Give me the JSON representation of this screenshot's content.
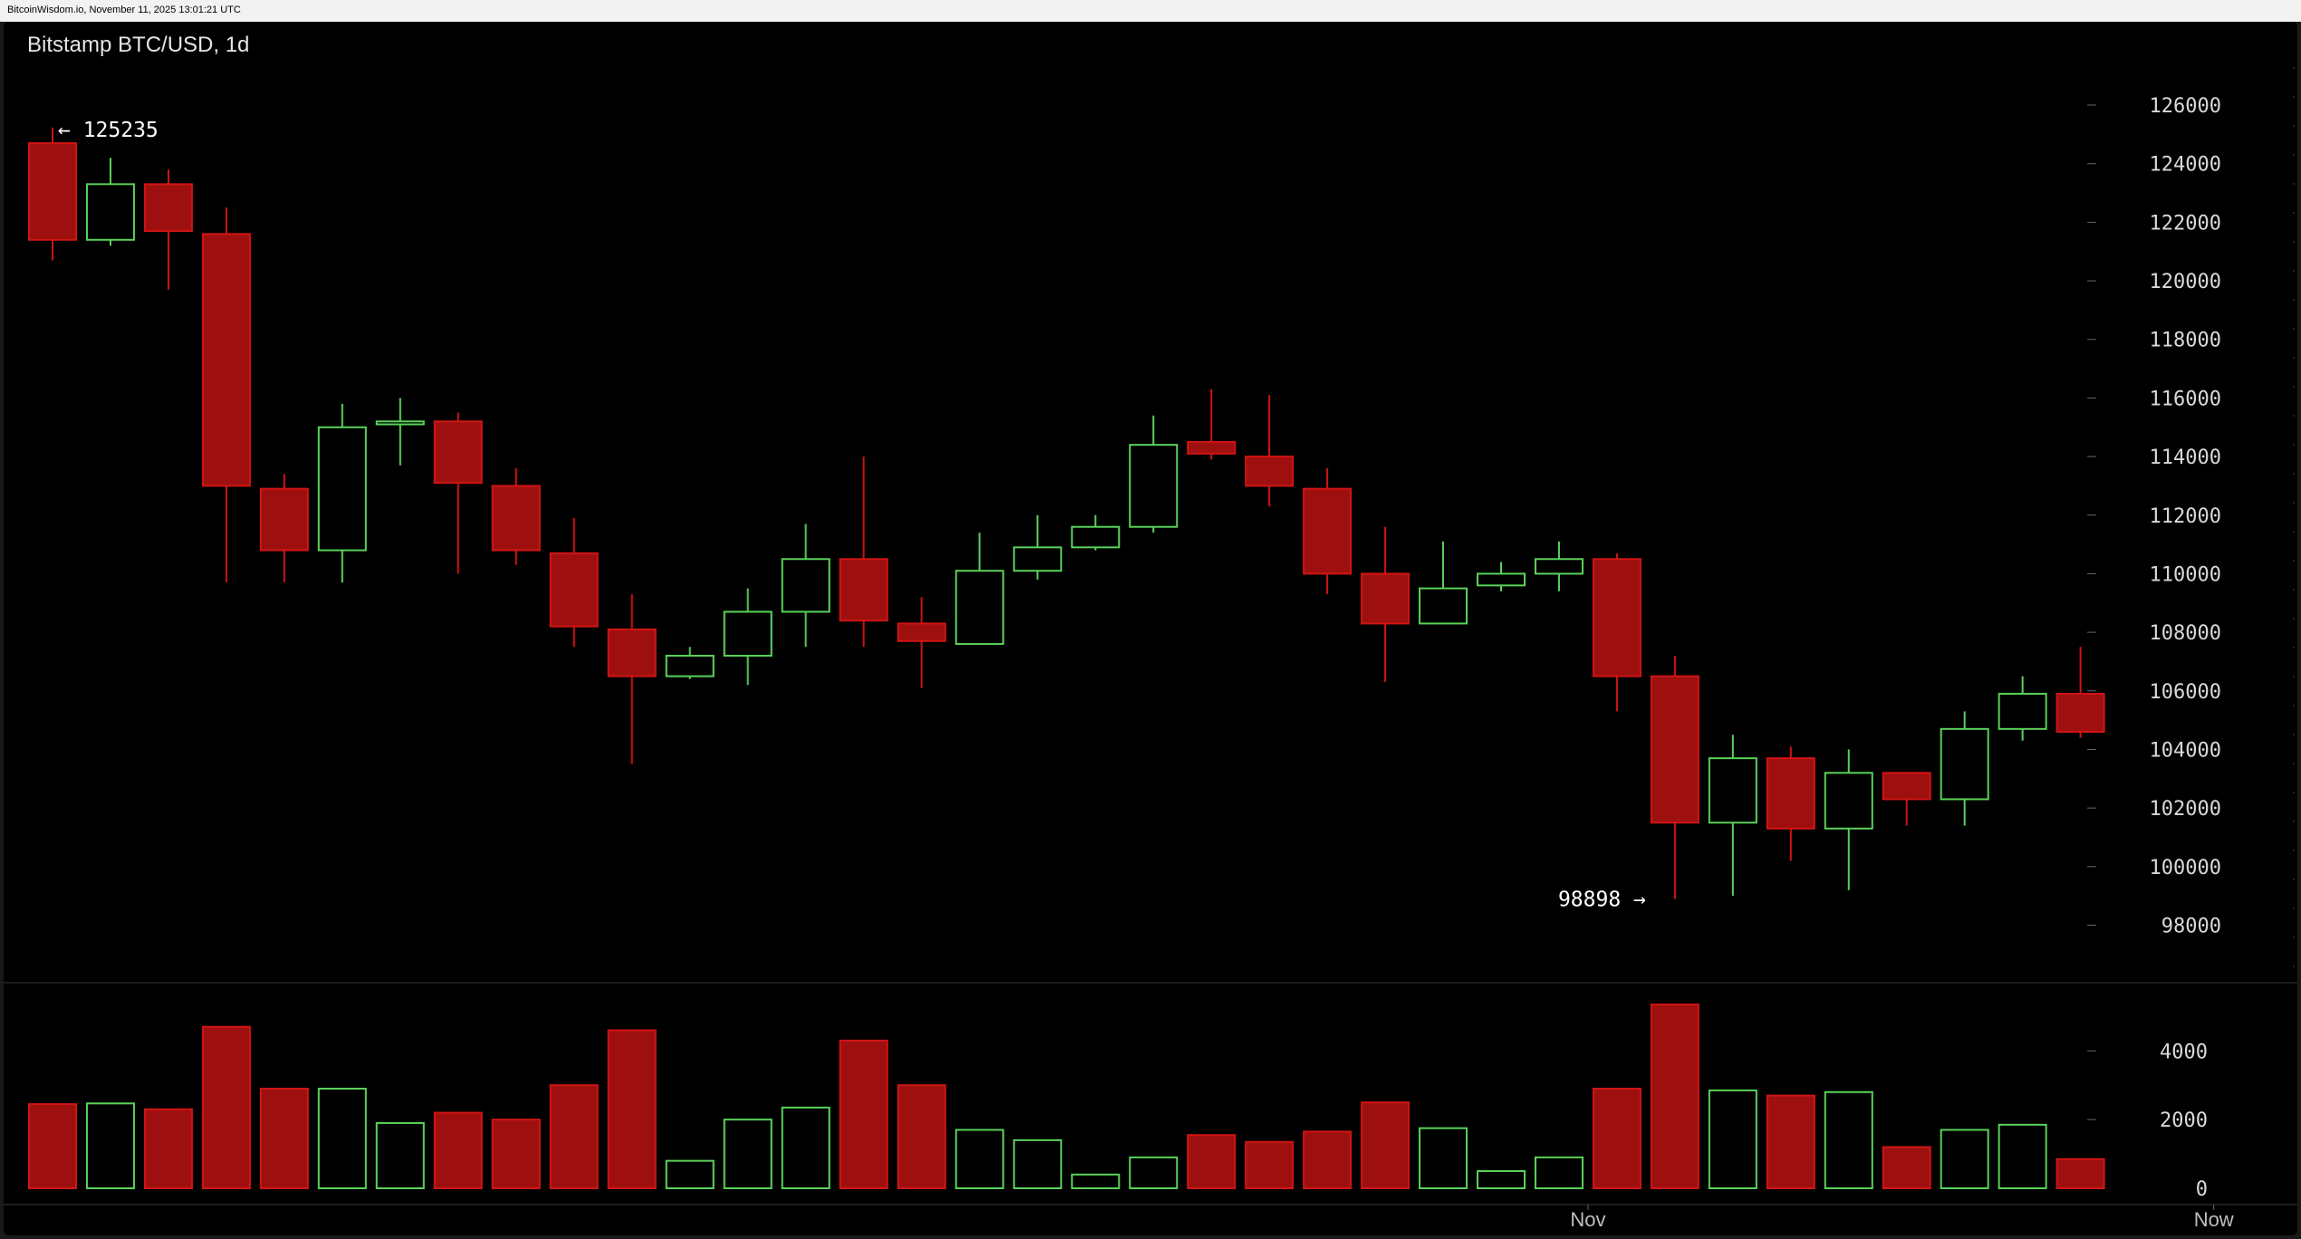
{
  "topbar": {
    "text": "BitcoinWisdom.io, November 11, 2025 13:01:21 UTC"
  },
  "chart_data": {
    "type": "candlestick",
    "title": "Bitstamp BTC/USD, 1d",
    "colors": {
      "up": "#5ad25a",
      "down": "#d11414",
      "down_fill": "#9e1010",
      "background": "#000000"
    },
    "price_axis": {
      "ylim": [
        96500,
        127300
      ],
      "ticks": [
        98000,
        100000,
        102000,
        104000,
        106000,
        108000,
        110000,
        112000,
        114000,
        116000,
        118000,
        120000,
        122000,
        124000,
        126000
      ]
    },
    "volume_axis": {
      "ylim": [
        0,
        5800
      ],
      "ticks": [
        0,
        2000,
        4000
      ]
    },
    "x_labels": [
      {
        "index": 26.5,
        "label": "Nov"
      },
      {
        "index": 37.3,
        "label": "Now"
      }
    ],
    "annotations": {
      "high": {
        "index": 0,
        "value": 125235,
        "label": "← 125235"
      },
      "low": {
        "index": 28,
        "value": 98898,
        "label": "98898 →"
      }
    },
    "candles": [
      {
        "o": 124700,
        "h": 125235,
        "l": 120700,
        "c": 121400,
        "v": 2450
      },
      {
        "o": 121400,
        "h": 124200,
        "l": 121200,
        "c": 123300,
        "v": 2470
      },
      {
        "o": 123300,
        "h": 123800,
        "l": 119700,
        "c": 121700,
        "v": 2300
      },
      {
        "o": 121600,
        "h": 122500,
        "l": 109700,
        "c": 113000,
        "v": 4700
      },
      {
        "o": 112900,
        "h": 113400,
        "l": 109700,
        "c": 110800,
        "v": 2900
      },
      {
        "o": 110800,
        "h": 115800,
        "l": 109700,
        "c": 115000,
        "v": 2900
      },
      {
        "o": 115100,
        "h": 116000,
        "l": 113700,
        "c": 115200,
        "v": 1900
      },
      {
        "o": 115200,
        "h": 115500,
        "l": 110000,
        "c": 113100,
        "v": 2200
      },
      {
        "o": 113000,
        "h": 113600,
        "l": 110300,
        "c": 110800,
        "v": 2000
      },
      {
        "o": 110700,
        "h": 111900,
        "l": 107500,
        "c": 108200,
        "v": 3000
      },
      {
        "o": 108100,
        "h": 109300,
        "l": 103500,
        "c": 106500,
        "v": 4600
      },
      {
        "o": 106500,
        "h": 107500,
        "l": 106400,
        "c": 107200,
        "v": 800
      },
      {
        "o": 107200,
        "h": 109500,
        "l": 106200,
        "c": 108700,
        "v": 2000
      },
      {
        "o": 108700,
        "h": 111700,
        "l": 107500,
        "c": 110500,
        "v": 2350
      },
      {
        "o": 110500,
        "h": 114000,
        "l": 107500,
        "c": 108400,
        "v": 4300
      },
      {
        "o": 108300,
        "h": 109200,
        "l": 106100,
        "c": 107700,
        "v": 3000
      },
      {
        "o": 107600,
        "h": 111400,
        "l": 107600,
        "c": 110100,
        "v": 1700
      },
      {
        "o": 110100,
        "h": 112000,
        "l": 109800,
        "c": 110900,
        "v": 1400
      },
      {
        "o": 110900,
        "h": 112000,
        "l": 110800,
        "c": 111600,
        "v": 400
      },
      {
        "o": 111600,
        "h": 115400,
        "l": 111400,
        "c": 114400,
        "v": 900
      },
      {
        "o": 114500,
        "h": 116300,
        "l": 113900,
        "c": 114100,
        "v": 1550
      },
      {
        "o": 114000,
        "h": 116100,
        "l": 112300,
        "c": 113000,
        "v": 1350
      },
      {
        "o": 112900,
        "h": 113600,
        "l": 109300,
        "c": 110000,
        "v": 1650
      },
      {
        "o": 110000,
        "h": 111600,
        "l": 106300,
        "c": 108300,
        "v": 2500
      },
      {
        "o": 108300,
        "h": 111100,
        "l": 108300,
        "c": 109500,
        "v": 1750
      },
      {
        "o": 109600,
        "h": 110400,
        "l": 109400,
        "c": 110000,
        "v": 500
      },
      {
        "o": 110000,
        "h": 111100,
        "l": 109400,
        "c": 110500,
        "v": 900
      },
      {
        "o": 110500,
        "h": 110700,
        "l": 105300,
        "c": 106500,
        "v": 2900
      },
      {
        "o": 106500,
        "h": 107200,
        "l": 98898,
        "c": 101500,
        "v": 5350
      },
      {
        "o": 101500,
        "h": 104500,
        "l": 99000,
        "c": 103700,
        "v": 2850
      },
      {
        "o": 103700,
        "h": 104100,
        "l": 100200,
        "c": 101300,
        "v": 2700
      },
      {
        "o": 101300,
        "h": 104000,
        "l": 99200,
        "c": 103200,
        "v": 2800
      },
      {
        "o": 103200,
        "h": 103200,
        "l": 101400,
        "c": 102300,
        "v": 1200
      },
      {
        "o": 102300,
        "h": 105300,
        "l": 101400,
        "c": 104700,
        "v": 1700
      },
      {
        "o": 104700,
        "h": 106500,
        "l": 104300,
        "c": 105900,
        "v": 1850
      },
      {
        "o": 105900,
        "h": 107500,
        "l": 104400,
        "c": 104600,
        "v": 850
      }
    ]
  }
}
